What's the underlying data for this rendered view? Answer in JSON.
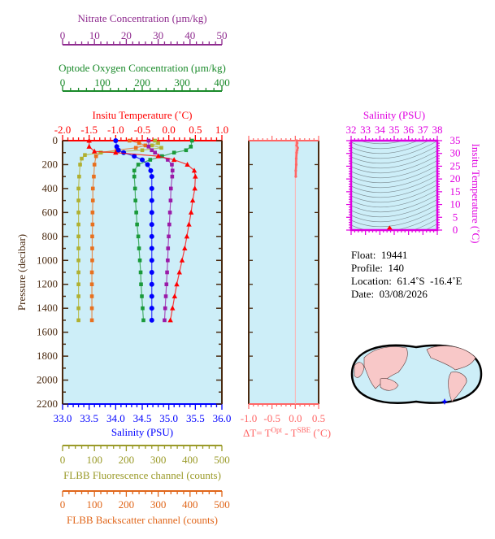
{
  "chart_data": [
    {
      "type": "line",
      "panel": "profile",
      "ylabel": "Pressure (decibar)",
      "ylim": [
        2200,
        0
      ],
      "yticks": [
        0,
        200,
        400,
        600,
        800,
        1000,
        1200,
        1400,
        1600,
        1800,
        2000,
        2200
      ],
      "axes": {
        "nitrate": {
          "title": "Nitrate Concentration (µm/kg)",
          "lim": [
            0,
            50
          ],
          "ticks": [
            0,
            10,
            20,
            30,
            40,
            50
          ],
          "color": "#8e2a8e"
        },
        "oxygen": {
          "title": "Optode Oxygen Concentration (µm/kg)",
          "lim": [
            0,
            400
          ],
          "ticks": [
            0,
            100,
            200,
            300,
            400
          ],
          "color": "#1a8a2a"
        },
        "temperature": {
          "title": "Insitu Temperature (˚C)",
          "lim": [
            -2.0,
            1.0
          ],
          "ticks": [
            "-2.0",
            "-1.5",
            "-1.0",
            "-0.5",
            "0.0",
            "0.5",
            "1.0"
          ],
          "color": "#ff0000"
        },
        "salinity": {
          "title": "Salinity (PSU)",
          "lim": [
            33.0,
            36.0
          ],
          "ticks": [
            "33.0",
            "33.5",
            "34.0",
            "34.5",
            "35.0",
            "35.5",
            "36.0"
          ],
          "color": "#0000ff"
        },
        "fluorescence": {
          "title": "FLBB Fluorescence channel (counts)",
          "lim": [
            0,
            500
          ],
          "ticks": [
            0,
            100,
            200,
            300,
            400,
            500
          ],
          "color": "#9a9a28"
        },
        "backscatter": {
          "title": "FLBB Backscatter channel (counts)",
          "lim": [
            0,
            500
          ],
          "ticks": [
            0,
            100,
            200,
            300,
            400,
            500
          ],
          "color": "#e0661a"
        }
      },
      "series": [
        {
          "axis": "temperature",
          "marker": "triangle",
          "color": "#ff0000",
          "p": [
            0,
            50,
            90,
            100,
            130,
            160,
            200,
            250,
            300,
            400,
            500,
            600,
            700,
            800,
            900,
            1000,
            1100,
            1200,
            1300,
            1400,
            1500
          ],
          "v": [
            -1.5,
            -1.5,
            -1.4,
            -1.0,
            -0.2,
            0.1,
            0.35,
            0.48,
            0.5,
            0.49,
            0.45,
            0.42,
            0.38,
            0.34,
            0.3,
            0.25,
            0.2,
            0.15,
            0.11,
            0.07,
            0.03
          ]
        },
        {
          "axis": "salinity",
          "marker": "circle",
          "color": "#0000ff",
          "p": [
            0,
            50,
            80,
            100,
            130,
            160,
            200,
            250,
            300,
            400,
            500,
            600,
            700,
            800,
            900,
            1000,
            1100,
            1200,
            1300,
            1400,
            1500
          ],
          "v": [
            34.0,
            34.02,
            34.05,
            34.15,
            34.35,
            34.5,
            34.6,
            34.66,
            34.68,
            34.68,
            34.68,
            34.68,
            34.68,
            34.68,
            34.68,
            34.68,
            34.68,
            34.68,
            34.68,
            34.68,
            34.68
          ]
        },
        {
          "axis": "oxygen",
          "marker": "square",
          "color": "#1a9a3a",
          "p": [
            0,
            50,
            80,
            100,
            130,
            160,
            200,
            250,
            300,
            400,
            500,
            600,
            700,
            800,
            900,
            1000,
            1100,
            1200,
            1300,
            1400,
            1500
          ],
          "v": [
            325,
            322,
            310,
            280,
            250,
            220,
            190,
            180,
            180,
            182,
            183,
            185,
            187,
            190,
            192,
            194,
            196,
            197,
            199,
            201,
            203
          ]
        },
        {
          "axis": "nitrate",
          "marker": "square",
          "color": "#9a1aa8",
          "p": [
            0,
            50,
            80,
            100,
            130,
            160,
            200,
            250,
            300,
            400,
            500,
            600,
            700,
            800,
            900,
            1000,
            1100,
            1200,
            1300,
            1400,
            1500
          ],
          "v": [
            27,
            27,
            28,
            29,
            31,
            33,
            34.3,
            34.5,
            34.4,
            34,
            33.9,
            33.7,
            33.5,
            33.3,
            33.1,
            33,
            32.8,
            32.6,
            32.4,
            32.2,
            32
          ]
        },
        {
          "axis": "fluorescence",
          "marker": "square",
          "color": "#b0b030",
          "p": [
            0,
            20,
            40,
            60,
            80,
            100,
            120,
            150,
            200,
            300,
            400,
            500,
            600,
            700,
            800,
            900,
            1000,
            1100,
            1200,
            1300,
            1400,
            1500
          ],
          "v": [
            290,
            300,
            280,
            310,
            250,
            120,
            70,
            60,
            55,
            52,
            50,
            50,
            50,
            50,
            50,
            50,
            50,
            50,
            50,
            50,
            50,
            50
          ]
        },
        {
          "axis": "backscatter",
          "marker": "square",
          "color": "#e8701e",
          "p": [
            0,
            20,
            40,
            60,
            80,
            100,
            130,
            200,
            300,
            400,
            500,
            600,
            700,
            800,
            900,
            1000,
            1100,
            1200,
            1300,
            1400,
            1500
          ],
          "v": [
            210,
            240,
            260,
            230,
            170,
            120,
            105,
            100,
            98,
            95,
            95,
            94,
            94,
            93,
            93,
            93,
            92,
            92,
            92,
            92,
            92
          ]
        }
      ]
    },
    {
      "type": "line",
      "panel": "delta-t",
      "xlabel": "ΔT= T",
      "xlabel_sup1": "Opt",
      "xlabel_mid": " - T",
      "xlabel_sup2": "SBE",
      "xlabel_end": " (˚C)",
      "xlim": [
        -1.0,
        0.5
      ],
      "xticks": [
        "-1.0",
        "-0.5",
        "0.0",
        "0.5"
      ],
      "color": "#ff6666",
      "p": [
        0,
        20,
        40,
        60,
        80,
        100,
        150,
        200,
        250,
        300
      ],
      "v": [
        0.03,
        0.04,
        0.03,
        0.05,
        0.04,
        0.03,
        0.02,
        0.02,
        0.01,
        0.01
      ]
    },
    {
      "type": "scatter",
      "panel": "t-s",
      "title": "Salinity (PSU)",
      "ylabel": "Insitu Temperature (˚C)",
      "xlim": [
        32,
        38
      ],
      "xticks": [
        32,
        33,
        34,
        35,
        36,
        37,
        38
      ],
      "ylim": [
        0,
        35
      ],
      "yticks": [
        0,
        5,
        10,
        15,
        20,
        25,
        30,
        35
      ],
      "color": "#e000e0",
      "points": [
        {
          "s": 34.68,
          "t": 0.5
        }
      ]
    }
  ],
  "info": {
    "float": "Float:  19441",
    "profile": "Profile:  140",
    "location": "Location:  61.4˚S  -16.4˚E",
    "date": "Date:  03/08/2026"
  },
  "map": {
    "marker": "star",
    "marker_color": "#0000ff"
  }
}
